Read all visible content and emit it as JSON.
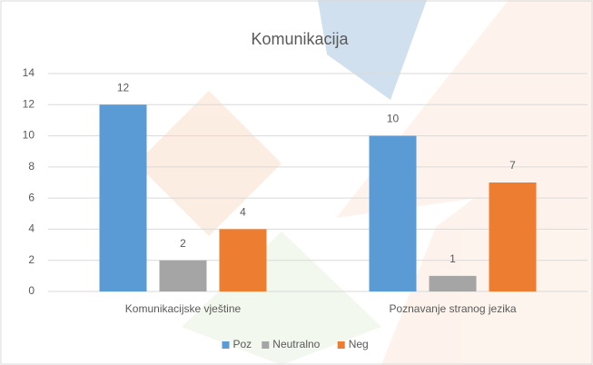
{
  "chart_data": {
    "type": "bar",
    "title": "Komunikacija",
    "categories": [
      "Komunikacijske vještine",
      "Poznavanje stranog jezika"
    ],
    "series": [
      {
        "name": "Poz",
        "color": "#5b9bd5",
        "values": [
          12,
          10
        ]
      },
      {
        "name": "Neutralno",
        "color": "#a5a5a5",
        "values": [
          2,
          1
        ]
      },
      {
        "name": "Neg",
        "color": "#ed7d31",
        "values": [
          4,
          7
        ]
      }
    ],
    "ylim": [
      0,
      14
    ],
    "yticks": [
      0,
      2,
      4,
      6,
      8,
      10,
      12,
      14
    ],
    "grid": true,
    "data_labels": true,
    "legend": "bottom"
  }
}
